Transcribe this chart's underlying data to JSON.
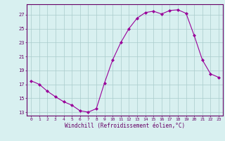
{
  "hours": [
    0,
    1,
    2,
    3,
    4,
    5,
    6,
    7,
    8,
    9,
    10,
    11,
    12,
    13,
    14,
    15,
    16,
    17,
    18,
    19,
    20,
    21,
    22,
    23
  ],
  "values": [
    17.5,
    17.0,
    16.0,
    15.2,
    14.5,
    14.0,
    13.2,
    13.0,
    13.5,
    17.2,
    20.5,
    23.0,
    25.0,
    26.5,
    27.3,
    27.5,
    27.1,
    27.6,
    27.7,
    27.2,
    24.0,
    20.5,
    18.5,
    18.0
  ],
  "line_color": "#990099",
  "marker": "D",
  "marker_size": 2.0,
  "bg_color": "#d8f0f0",
  "grid_color": "#aacccc",
  "ylim": [
    12.5,
    28.5
  ],
  "yticks": [
    13,
    15,
    17,
    19,
    21,
    23,
    25,
    27
  ],
  "xlabel": "Windchill (Refroidissement éolien,°C)",
  "xlabel_color": "#660066",
  "tick_color": "#660066",
  "xlim": [
    -0.5,
    23.5
  ],
  "xtick_fontsize": 4.5,
  "ytick_fontsize": 5.0,
  "xlabel_fontsize": 5.5
}
